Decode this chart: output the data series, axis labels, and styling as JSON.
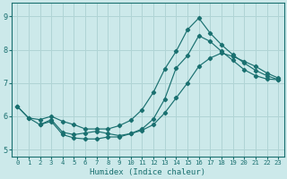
{
  "xlabel": "Humidex (Indice chaleur)",
  "xlim": [
    -0.5,
    23.5
  ],
  "ylim": [
    4.8,
    9.4
  ],
  "xticks": [
    0,
    1,
    2,
    3,
    4,
    5,
    6,
    7,
    8,
    9,
    10,
    11,
    12,
    13,
    14,
    15,
    16,
    17,
    18,
    19,
    20,
    21,
    22,
    23
  ],
  "yticks": [
    5,
    6,
    7,
    8,
    9
  ],
  "bg_color": "#cce9ea",
  "grid_color": "#b0d4d5",
  "line_color": "#1a7070",
  "line1_x": [
    0,
    1,
    2,
    3,
    4,
    5,
    6,
    7,
    8,
    9,
    10,
    11,
    12,
    13,
    14,
    15,
    16,
    17,
    18,
    19,
    20,
    21,
    22,
    23
  ],
  "line1_y": [
    6.3,
    5.95,
    5.75,
    5.85,
    5.45,
    5.35,
    5.32,
    5.32,
    5.38,
    5.38,
    5.48,
    5.58,
    5.75,
    6.1,
    6.55,
    7.0,
    7.5,
    7.75,
    7.9,
    7.8,
    7.65,
    7.5,
    7.3,
    7.15
  ],
  "line2_x": [
    0,
    1,
    2,
    3,
    4,
    5,
    6,
    7,
    8,
    9,
    10,
    11,
    12,
    13,
    14,
    15,
    16,
    17,
    18,
    19,
    20,
    21,
    22,
    23
  ],
  "line2_y": [
    6.3,
    5.95,
    5.9,
    6.0,
    5.85,
    5.75,
    5.62,
    5.62,
    5.62,
    5.72,
    5.88,
    6.2,
    6.72,
    7.42,
    7.95,
    8.6,
    8.95,
    8.5,
    8.15,
    7.85,
    7.6,
    7.38,
    7.22,
    7.1
  ],
  "line3_x": [
    2,
    3,
    4,
    5,
    6,
    7,
    8,
    9,
    10,
    11,
    12,
    13,
    14,
    15,
    16,
    17,
    18,
    19,
    20,
    21,
    22,
    23
  ],
  "line3_y": [
    5.75,
    5.9,
    5.52,
    5.45,
    5.5,
    5.55,
    5.48,
    5.42,
    5.48,
    5.62,
    5.92,
    6.52,
    7.45,
    7.82,
    8.42,
    8.25,
    7.95,
    7.68,
    7.4,
    7.22,
    7.12,
    7.1
  ]
}
